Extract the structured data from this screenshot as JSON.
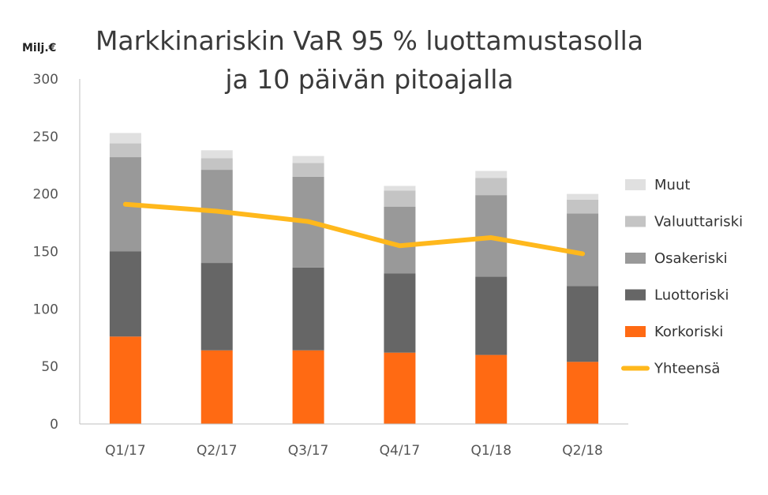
{
  "chart_data": {
    "type": "bar",
    "stacked": true,
    "title_lines": [
      "Markkinariskin VaR 95 % luottamustasolla",
      "ja 10 päivän pitoajalla"
    ],
    "unit_label": "Milj.€",
    "categories": [
      "Q1/17",
      "Q2/17",
      "Q3/17",
      "Q4/17",
      "Q1/18",
      "Q2/18"
    ],
    "ylim": [
      0,
      300
    ],
    "yticks": [
      "0",
      "50",
      "100",
      "150",
      "200",
      "250",
      "300"
    ],
    "grid": false,
    "legend_position": "right",
    "series": [
      {
        "name": "Korkoriski",
        "color": "#ff6a13",
        "values": [
          76,
          64,
          64,
          62,
          60,
          54
        ]
      },
      {
        "name": "Luottoriski",
        "color": "#666666",
        "values": [
          74,
          76,
          72,
          69,
          68,
          66
        ]
      },
      {
        "name": "Osakeriski",
        "color": "#999999",
        "values": [
          82,
          81,
          79,
          58,
          71,
          63
        ]
      },
      {
        "name": "Valuuttariski",
        "color": "#c4c4c4",
        "values": [
          12,
          10,
          12,
          14,
          15,
          12
        ]
      },
      {
        "name": "Muut",
        "color": "#e0e0e0",
        "values": [
          9,
          7,
          6,
          4,
          6,
          5
        ]
      }
    ],
    "line_series": {
      "name": "Yhteensä",
      "color": "#ffb81c",
      "values": [
        191,
        185,
        176,
        155,
        162,
        148
      ]
    },
    "legend_order": [
      "Muut",
      "Valuuttariski",
      "Osakeriski",
      "Luottoriski",
      "Korkoriski",
      "Yhteensä"
    ]
  }
}
